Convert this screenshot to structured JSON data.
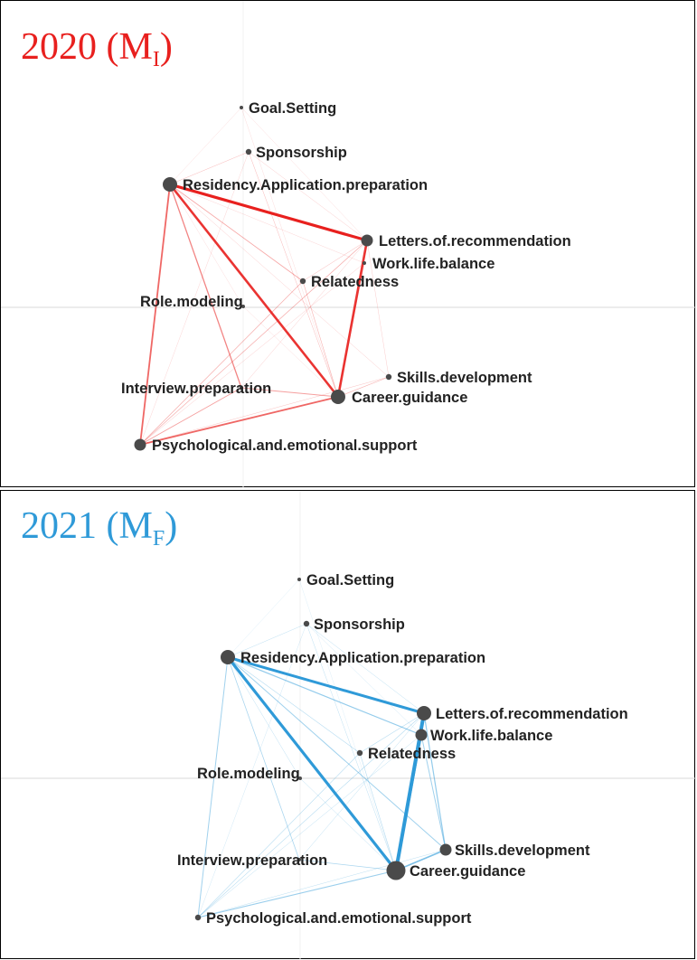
{
  "panels": [
    {
      "id": "top",
      "title_main": "2020 (M",
      "title_sub": "I",
      "title_close": ")",
      "color": "#e8201e",
      "nodes": [
        {
          "key": "goal",
          "label": "Goal.Setting",
          "size": "tiny"
        },
        {
          "key": "spons",
          "label": "Sponsorship",
          "size": "small"
        },
        {
          "key": "res",
          "label": "Residency.Application.preparation",
          "size": "large"
        },
        {
          "key": "lor",
          "label": "Letters.of.recommendation",
          "size": "medium"
        },
        {
          "key": "wlb",
          "label": "Work.life.balance",
          "size": "tiny"
        },
        {
          "key": "rel",
          "label": "Relatedness",
          "size": "small"
        },
        {
          "key": "role",
          "label": "Role.modeling",
          "size": "tiny"
        },
        {
          "key": "skills",
          "label": "Skills.development",
          "size": "small"
        },
        {
          "key": "interview",
          "label": "Interview.preparation",
          "size": "tiny"
        },
        {
          "key": "career",
          "label": "Career.guidance",
          "size": "large"
        },
        {
          "key": "psych",
          "label": "Psychological.and.emotional.support",
          "size": "medium"
        }
      ]
    },
    {
      "id": "bottom",
      "title_main": "2021 (M",
      "title_sub": "F",
      "title_close": ")",
      "color": "#2f9ad8",
      "nodes": [
        {
          "key": "goal",
          "label": "Goal.Setting",
          "size": "tiny"
        },
        {
          "key": "spons",
          "label": "Sponsorship",
          "size": "small"
        },
        {
          "key": "res",
          "label": "Residency.Application.preparation",
          "size": "large"
        },
        {
          "key": "lor",
          "label": "Letters.of.recommendation",
          "size": "large"
        },
        {
          "key": "wlb",
          "label": "Work.life.balance",
          "size": "medium"
        },
        {
          "key": "rel",
          "label": "Relatedness",
          "size": "small"
        },
        {
          "key": "role",
          "label": "Role.modeling",
          "size": "tiny"
        },
        {
          "key": "skills",
          "label": "Skills.development",
          "size": "medium"
        },
        {
          "key": "interview",
          "label": "Interview.preparation",
          "size": "tiny"
        },
        {
          "key": "career",
          "label": "Career.guidance",
          "size": "xlarge"
        },
        {
          "key": "psych",
          "label": "Psychological.and.emotional.support",
          "size": "small"
        }
      ]
    }
  ]
}
